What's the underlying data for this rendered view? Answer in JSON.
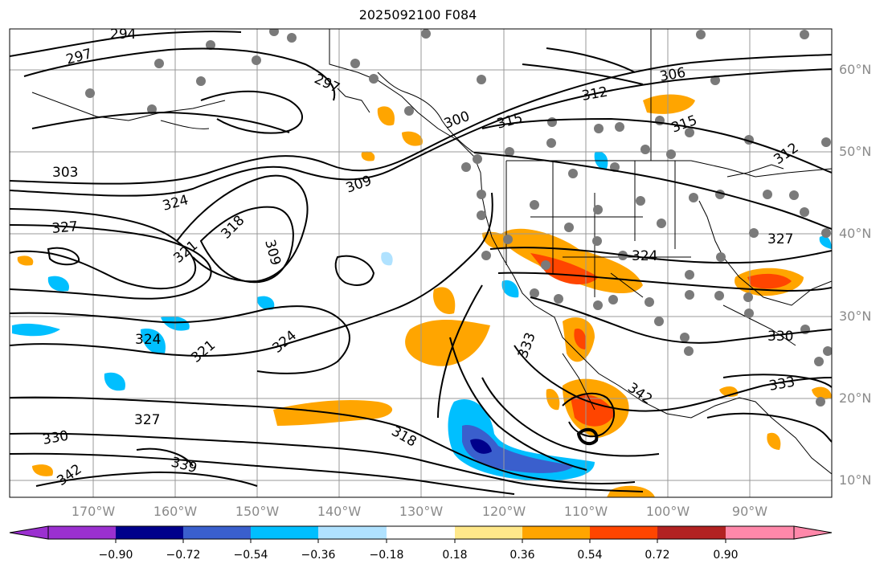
{
  "title": "2025092100 F084",
  "lat_labels": [
    "60°N",
    "50°N",
    "40°N",
    "30°N",
    "20°N",
    "10°N"
  ],
  "lon_labels": [
    "170°W",
    "160°W",
    "150°W",
    "140°W",
    "130°W",
    "120°W",
    "110°W",
    "100°W",
    "90°W"
  ],
  "colorbar": {
    "ticks": [
      "−0.90",
      "−0.72",
      "−0.54",
      "−0.36",
      "−0.18",
      "0.18",
      "0.36",
      "0.54",
      "0.72",
      "0.90"
    ],
    "colors": [
      "#9b30d0",
      "#00008b",
      "#3a5fcd",
      "#00bfff",
      "#b0e2ff",
      "#ffffff",
      "#ffe88a",
      "#ffa500",
      "#ff4500",
      "#b22222",
      "#ff88aa"
    ]
  },
  "contour_labels": [
    "294",
    "297",
    "297",
    "300",
    "303",
    "306",
    "309",
    "309",
    "312",
    "312",
    "315",
    "315",
    "318",
    "318",
    "321",
    "321",
    "324",
    "324",
    "324",
    "324",
    "327",
    "327",
    "327",
    "330",
    "330",
    "333",
    "333",
    "339",
    "342",
    "342"
  ]
}
